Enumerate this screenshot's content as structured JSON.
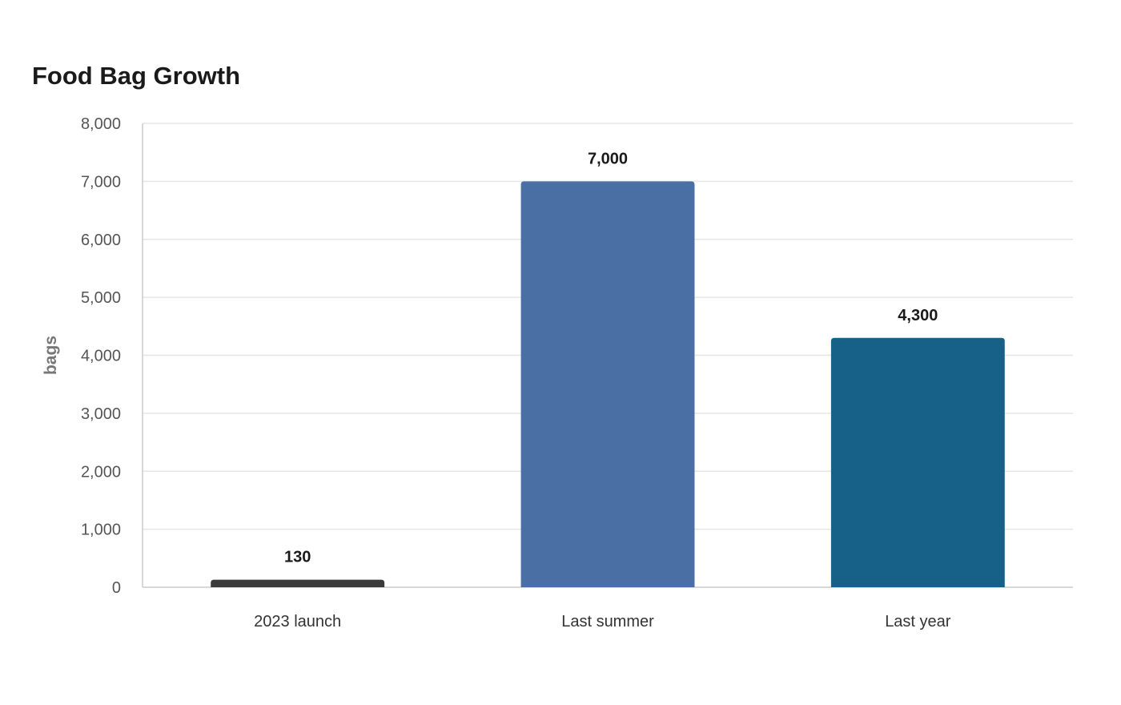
{
  "chart_data": {
    "type": "bar",
    "title": "Food Bag Growth",
    "xlabel": "",
    "ylabel": "bags",
    "categories": [
      "2023 launch",
      "Last summer",
      "Last year"
    ],
    "values": [
      130,
      7000,
      4300
    ],
    "value_labels": [
      "130",
      "7,000",
      "4,300"
    ],
    "bar_colors": [
      "#3a3a3a",
      "#4a6fa5",
      "#176189"
    ],
    "ylim": [
      0,
      8000
    ],
    "yticks": [
      0,
      1000,
      2000,
      3000,
      4000,
      5000,
      6000,
      7000,
      8000
    ],
    "ytick_labels": [
      "0",
      "1,000",
      "2,000",
      "3,000",
      "4,000",
      "5,000",
      "6,000",
      "7,000",
      "8,000"
    ],
    "grid": true,
    "legend": "none"
  },
  "colors": {
    "grid": "#e6e6e6",
    "axis": "#cccccc",
    "tick_text": "#555555",
    "category_text": "#333333",
    "label_text": "#1a1a1a",
    "axis_title": "#777777"
  }
}
